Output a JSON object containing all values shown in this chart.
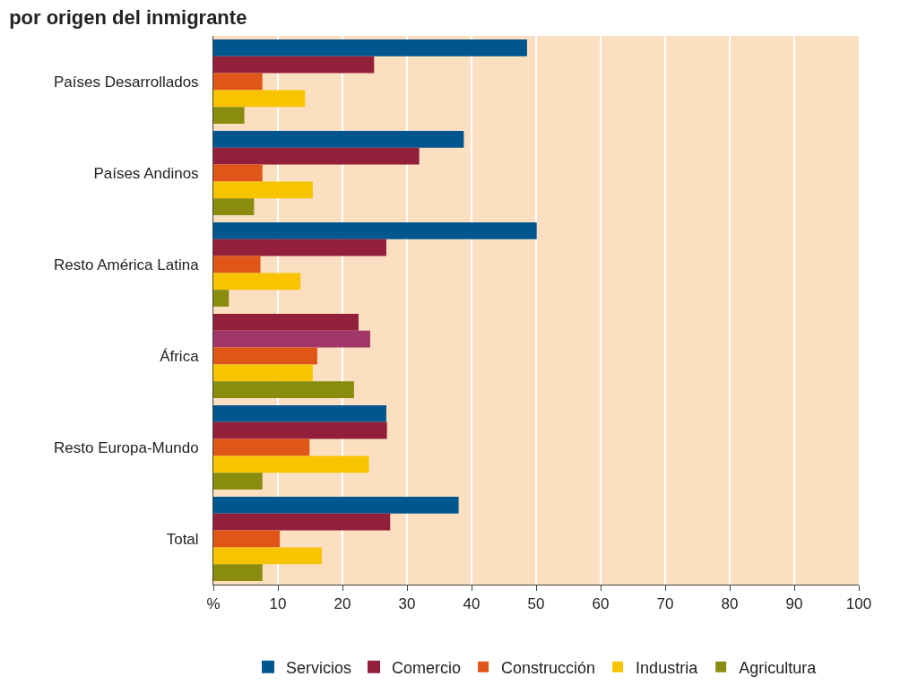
{
  "chart_data": {
    "type": "bar",
    "orientation": "horizontal",
    "title": "por origen del inmigrante",
    "categories": [
      "Países Desarrollados",
      "Países Andinos",
      "Resto América Latina",
      "África",
      "Resto Europa-Mundo",
      "Total"
    ],
    "series": [
      {
        "name": "Servicios",
        "color": "#00568f",
        "colors": [
          "#00568f",
          "#00568f",
          "#00568f",
          "#93203a",
          "#00568f",
          "#00568f"
        ],
        "values": [
          48.6,
          38.8,
          50.1,
          22.5,
          26.8,
          38.0
        ]
      },
      {
        "name": "Comercio",
        "color": "#93203a",
        "colors": [
          "#93203a",
          "#93203a",
          "#93203a",
          "#a0366a",
          "#93203a",
          "#93203a"
        ],
        "values": [
          24.9,
          31.9,
          26.8,
          24.3,
          26.9,
          27.4
        ]
      },
      {
        "name": "Construcción",
        "color": "#e05518",
        "values": [
          7.6,
          7.6,
          7.3,
          16.1,
          14.9,
          10.3
        ]
      },
      {
        "name": "Industria",
        "color": "#f8c400",
        "values": [
          14.2,
          15.4,
          13.5,
          15.4,
          24.1,
          16.8
        ]
      },
      {
        "name": "Agricultura",
        "color": "#8a8c10",
        "values": [
          4.8,
          6.3,
          2.4,
          21.8,
          7.6,
          7.6
        ]
      }
    ],
    "xlim": [
      0,
      100
    ],
    "xticks": [
      {
        "value": 0,
        "label": "%"
      },
      10,
      20,
      30,
      40,
      50,
      60,
      70,
      80,
      90,
      100
    ],
    "grid": "x",
    "legend": "bottom"
  }
}
